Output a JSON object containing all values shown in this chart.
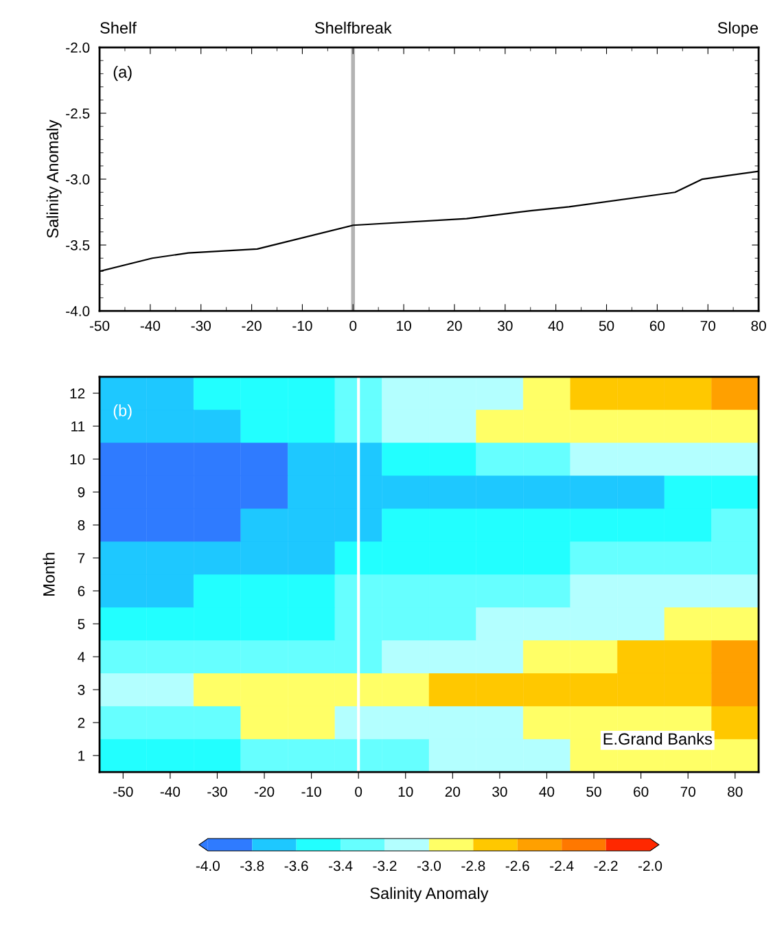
{
  "chart_data": [
    {
      "type": "line",
      "ylabel": "Salinity Anomaly",
      "x": [
        -50,
        -39.6,
        -32.5,
        -18.9,
        0,
        22.4,
        35,
        42.6,
        63.5,
        68.9,
        80
      ],
      "series": [
        {
          "color": "#000000",
          "values": [
            -3.7,
            -3.6,
            -3.56,
            -3.53,
            -3.35,
            -3.3,
            -3.24,
            -3.21,
            -3.1,
            -3.0,
            -2.94
          ]
        }
      ],
      "xlim": [
        -50,
        80
      ],
      "ylim": [
        -4,
        -2
      ],
      "xticks": [
        -50,
        -40,
        -30,
        -20,
        -10,
        0,
        10,
        20,
        30,
        40,
        50,
        60,
        70,
        80
      ],
      "yticks": [
        {
          "value": -4,
          "label": "-4.0"
        },
        {
          "value": -3.5,
          "label": "-3.5"
        },
        {
          "value": -3,
          "label": "-3.0"
        },
        {
          "value": -2.5,
          "label": "-2.5"
        },
        {
          "value": -2,
          "label": "-2.0"
        }
      ],
      "ref_lines": [
        {
          "axis": "x",
          "value": 0,
          "color": "#b3b3b3"
        }
      ],
      "annotations": [
        "(a)",
        "Shelf",
        "Shelfbreak",
        "Slope"
      ],
      "grid": false,
      "legend": false
    },
    {
      "type": "heatmap",
      "ylabel": "Month",
      "clabel": "Salinity Anomaly",
      "categories": [
        "-50",
        "-40",
        "-30",
        "-20",
        "-10",
        "0",
        "10",
        "20",
        "30",
        "40",
        "50",
        "60",
        "70",
        "80"
      ],
      "y_categories": [
        "12",
        "11",
        "10",
        "9",
        "8",
        "7",
        "6",
        "5",
        "4",
        "3",
        "2",
        "1"
      ],
      "cells": [
        [
          -3.7,
          -3.7,
          -3.5,
          -3.5,
          -3.5,
          -3.3,
          -3.1,
          -3.1,
          -3.1,
          -2.9,
          -2.7,
          -2.7,
          -2.7,
          -2.5
        ],
        [
          -3.7,
          -3.7,
          -3.7,
          -3.5,
          -3.5,
          -3.3,
          -3.1,
          -3.1,
          -2.9,
          -2.9,
          -2.9,
          -2.9,
          -2.9,
          -2.9
        ],
        [
          -3.9,
          -3.9,
          -3.9,
          -3.9,
          -3.7,
          -3.7,
          -3.5,
          -3.5,
          -3.3,
          -3.3,
          -3.1,
          -3.1,
          -3.1,
          -3.1
        ],
        [
          -3.9,
          -3.9,
          -3.9,
          -3.9,
          -3.7,
          -3.7,
          -3.7,
          -3.7,
          -3.7,
          -3.7,
          -3.7,
          -3.7,
          -3.5,
          -3.5
        ],
        [
          -3.9,
          -3.9,
          -3.9,
          -3.7,
          -3.7,
          -3.7,
          -3.5,
          -3.5,
          -3.5,
          -3.5,
          -3.5,
          -3.5,
          -3.5,
          -3.3
        ],
        [
          -3.7,
          -3.7,
          -3.7,
          -3.7,
          -3.7,
          -3.5,
          -3.5,
          -3.5,
          -3.5,
          -3.5,
          -3.3,
          -3.3,
          -3.3,
          -3.3
        ],
        [
          -3.7,
          -3.7,
          -3.5,
          -3.5,
          -3.5,
          -3.3,
          -3.3,
          -3.3,
          -3.3,
          -3.3,
          -3.1,
          -3.1,
          -3.1,
          -3.1
        ],
        [
          -3.5,
          -3.5,
          -3.5,
          -3.5,
          -3.5,
          -3.3,
          -3.3,
          -3.3,
          -3.1,
          -3.1,
          -3.1,
          -3.1,
          -2.9,
          -2.9
        ],
        [
          -3.3,
          -3.3,
          -3.3,
          -3.3,
          -3.3,
          -3.3,
          -3.1,
          -3.1,
          -3.1,
          -2.9,
          -2.9,
          -2.7,
          -2.7,
          -2.5
        ],
        [
          -3.1,
          -3.1,
          -2.9,
          -2.9,
          -2.9,
          -2.9,
          -2.9,
          -2.7,
          -2.7,
          -2.7,
          -2.7,
          -2.7,
          -2.7,
          -2.5
        ],
        [
          -3.3,
          -3.3,
          -3.3,
          -2.9,
          -2.9,
          -3.1,
          -3.1,
          -3.1,
          -3.1,
          -2.9,
          -2.9,
          -2.9,
          -2.9,
          -2.7
        ],
        [
          -3.5,
          -3.5,
          -3.5,
          -3.3,
          -3.3,
          -3.3,
          -3.3,
          -3.1,
          -3.1,
          -3.1,
          -2.9,
          -2.9,
          -2.9,
          -2.9
        ]
      ],
      "colors": [
        "#2f7bff",
        "#1ec8ff",
        "#22ffff",
        "#66ffff",
        "#b3ffff",
        "#ffff66",
        "#ffc800",
        "#ffa000",
        "#ff7800",
        "#ff2800"
      ],
      "clim": [
        -4,
        -2
      ],
      "cticks": [
        {
          "value": -4,
          "label": "-4.0"
        },
        {
          "value": -3.8,
          "label": "-3.8"
        },
        {
          "value": -3.6,
          "label": "-3.6"
        },
        {
          "value": -3.4,
          "label": "-3.4"
        },
        {
          "value": -3.2,
          "label": "-3.2"
        },
        {
          "value": -3,
          "label": "-3.0"
        },
        {
          "value": -2.8,
          "label": "-2.8"
        },
        {
          "value": -2.6,
          "label": "-2.6"
        },
        {
          "value": -2.4,
          "label": "-2.4"
        },
        {
          "value": -2.2,
          "label": "-2.2"
        },
        {
          "value": -2,
          "label": "-2.0"
        }
      ],
      "ref_lines": [
        {
          "axis": "x",
          "value": "0",
          "color": "#ffffff"
        }
      ],
      "annotations": [
        "(b)",
        "E.Grand Banks"
      ]
    }
  ]
}
